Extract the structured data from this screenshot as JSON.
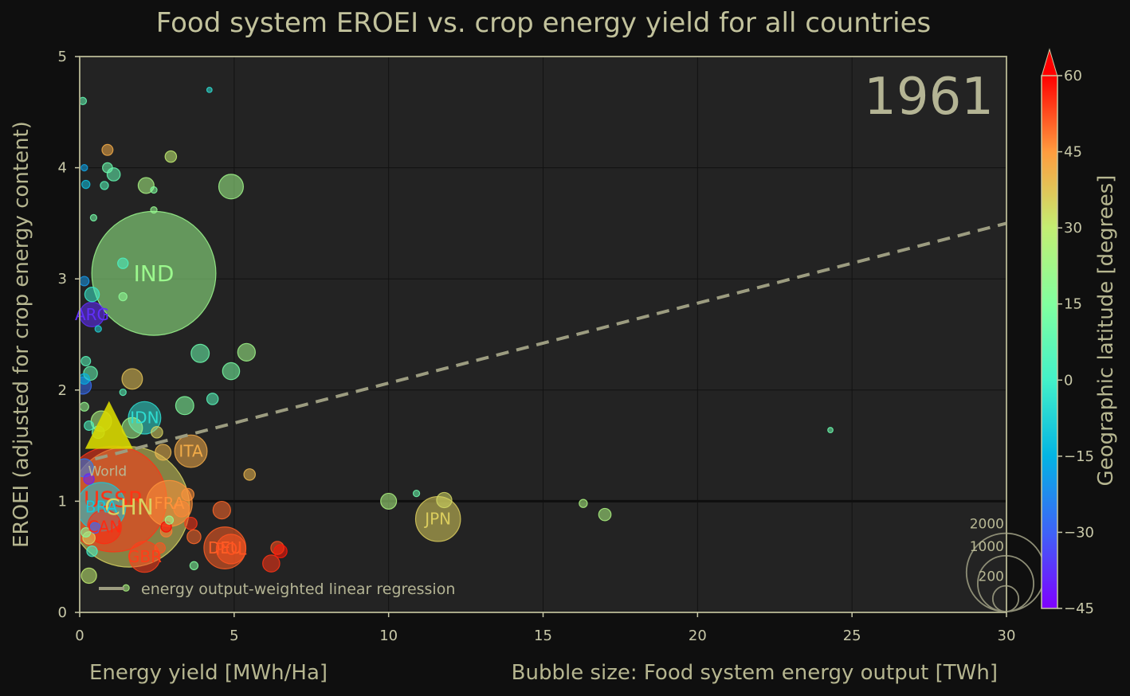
{
  "chart_data": {
    "type": "scatter",
    "title": "Food system EROEI vs. crop energy yield for all countries",
    "xlabel": "Energy yield [MWh/Ha]",
    "ylabel": "EROEI (adjusted for crop energy content)",
    "size_label": "Bubble size: Food system energy output [TWh]",
    "year": "1961",
    "xlim": [
      0,
      30
    ],
    "ylim": [
      0,
      5
    ],
    "xticks": [
      "0",
      "5",
      "10",
      "15",
      "20",
      "25",
      "30"
    ],
    "yticks": [
      "0",
      "1",
      "2",
      "3",
      "4",
      "5"
    ],
    "grid": true,
    "reference_line_y": 1,
    "regression": {
      "label": "energy output-weighted linear regression",
      "x": [
        0.5,
        30
      ],
      "y": [
        1.38,
        3.5
      ],
      "color": "#9c9c80"
    },
    "world_marker": {
      "label": "World",
      "x": 0.95,
      "y": 1.6,
      "color": "#d8d800"
    },
    "colorbar": {
      "label": "Geographic latitude [degrees]",
      "min": -45,
      "max": 60,
      "ticks": [
        "60",
        "45",
        "30",
        "15",
        "0",
        "−15",
        "−30",
        "−45"
      ],
      "tick_values": [
        60,
        45,
        30,
        15,
        0,
        -15,
        -30,
        -45
      ]
    },
    "size_legend": {
      "values": [
        2000,
        1000,
        200
      ],
      "labels": [
        "2000",
        "1000",
        "200"
      ]
    },
    "labeled_points": [
      {
        "label": "IND",
        "x": 2.4,
        "y": 3.05,
        "lat": 21,
        "size": 1800
      },
      {
        "label": "ARG",
        "x": 0.4,
        "y": 2.68,
        "lat": -38,
        "size": 60
      },
      {
        "label": "IDN",
        "x": 2.1,
        "y": 1.75,
        "lat": -5,
        "size": 110
      },
      {
        "label": "ITA",
        "x": 3.6,
        "y": 1.45,
        "lat": 42,
        "size": 110
      },
      {
        "label": "USSR",
        "x": 1.1,
        "y": 1.02,
        "lat": 55,
        "size": 1300
      },
      {
        "label": "CHN",
        "x": 1.6,
        "y": 0.95,
        "lat": 35,
        "size": 1700
      },
      {
        "label": "BRA",
        "x": 0.7,
        "y": 0.95,
        "lat": -10,
        "size": 260
      },
      {
        "label": "FRA",
        "x": 2.9,
        "y": 0.98,
        "lat": 46,
        "size": 230
      },
      {
        "label": "CAN",
        "x": 0.8,
        "y": 0.77,
        "lat": 56,
        "size": 120
      },
      {
        "label": "GBR",
        "x": 2.1,
        "y": 0.5,
        "lat": 54,
        "size": 100
      },
      {
        "label": "DEU",
        "x": 4.7,
        "y": 0.58,
        "lat": 51,
        "size": 190
      },
      {
        "label": "POL",
        "x": 4.9,
        "y": 0.57,
        "lat": 52,
        "size": 90
      },
      {
        "label": "JPN",
        "x": 11.6,
        "y": 0.84,
        "lat": 36,
        "size": 220
      }
    ],
    "points": [
      {
        "x": 4.9,
        "y": 3.83,
        "lat": 22,
        "size": 60
      },
      {
        "x": 2.15,
        "y": 3.84,
        "lat": 24,
        "size": 22
      },
      {
        "x": 2.95,
        "y": 4.1,
        "lat": 30,
        "size": 10
      },
      {
        "x": 1.1,
        "y": 3.94,
        "lat": 8,
        "size": 14
      },
      {
        "x": 0.9,
        "y": 4.0,
        "lat": 10,
        "size": 7
      },
      {
        "x": 0.9,
        "y": 4.16,
        "lat": 42,
        "size": 9
      },
      {
        "x": 0.1,
        "y": 4.6,
        "lat": 8,
        "size": 3
      },
      {
        "x": 0.2,
        "y": 3.85,
        "lat": -12,
        "size": 4
      },
      {
        "x": 0.15,
        "y": 4.0,
        "lat": -18,
        "size": 2
      },
      {
        "x": 0.8,
        "y": 3.84,
        "lat": 5,
        "size": 4
      },
      {
        "x": 2.4,
        "y": 3.8,
        "lat": 15,
        "size": 2
      },
      {
        "x": 2.4,
        "y": 3.62,
        "lat": 20,
        "size": 2
      },
      {
        "x": 0.45,
        "y": 3.55,
        "lat": 12,
        "size": 2
      },
      {
        "x": 1.4,
        "y": 3.14,
        "lat": 2,
        "size": 8
      },
      {
        "x": 0.15,
        "y": 2.98,
        "lat": -20,
        "size": 6
      },
      {
        "x": 0.4,
        "y": 2.86,
        "lat": -2,
        "size": 18
      },
      {
        "x": 1.4,
        "y": 2.84,
        "lat": 18,
        "size": 4
      },
      {
        "x": 0.6,
        "y": 2.55,
        "lat": -8,
        "size": 2
      },
      {
        "x": 0.2,
        "y": 2.26,
        "lat": 5,
        "size": 6
      },
      {
        "x": 0.35,
        "y": 2.15,
        "lat": 8,
        "size": 16
      },
      {
        "x": 0.15,
        "y": 2.1,
        "lat": -15,
        "size": 8
      },
      {
        "x": 0.1,
        "y": 2.04,
        "lat": -28,
        "size": 26
      },
      {
        "x": 1.7,
        "y": 2.1,
        "lat": 38,
        "size": 40
      },
      {
        "x": 3.9,
        "y": 2.33,
        "lat": 10,
        "size": 30
      },
      {
        "x": 5.4,
        "y": 2.34,
        "lat": 22,
        "size": 28
      },
      {
        "x": 4.9,
        "y": 2.17,
        "lat": 13,
        "size": 26
      },
      {
        "x": 4.3,
        "y": 1.92,
        "lat": 5,
        "size": 10
      },
      {
        "x": 3.4,
        "y": 1.86,
        "lat": 15,
        "size": 30
      },
      {
        "x": 1.4,
        "y": 1.98,
        "lat": 5,
        "size": 2
      },
      {
        "x": 0.15,
        "y": 1.85,
        "lat": 20,
        "size": 5
      },
      {
        "x": 0.7,
        "y": 1.72,
        "lat": 25,
        "size": 40
      },
      {
        "x": 0.3,
        "y": 1.68,
        "lat": 3,
        "size": 6
      },
      {
        "x": 0.6,
        "y": 1.62,
        "lat": 12,
        "size": 12
      },
      {
        "x": 1.7,
        "y": 1.66,
        "lat": 22,
        "size": 40
      },
      {
        "x": 2.5,
        "y": 1.62,
        "lat": 35,
        "size": 10
      },
      {
        "x": 2.7,
        "y": 1.44,
        "lat": 40,
        "size": 22
      },
      {
        "x": 0.15,
        "y": 1.3,
        "lat": -25,
        "size": 30
      },
      {
        "x": 0.3,
        "y": 1.2,
        "lat": -40,
        "size": 8
      },
      {
        "x": 5.5,
        "y": 1.24,
        "lat": 40,
        "size": 10
      },
      {
        "x": 10.0,
        "y": 1.0,
        "lat": 25,
        "size": 22
      },
      {
        "x": 11.8,
        "y": 1.01,
        "lat": 34,
        "size": 20
      },
      {
        "x": 10.9,
        "y": 1.07,
        "lat": 10,
        "size": 2
      },
      {
        "x": 16.3,
        "y": 0.98,
        "lat": 25,
        "size": 4
      },
      {
        "x": 17.0,
        "y": 0.88,
        "lat": 25,
        "size": 12
      },
      {
        "x": 24.3,
        "y": 1.64,
        "lat": 10,
        "size": 1
      },
      {
        "x": 4.2,
        "y": 4.7,
        "lat": -5,
        "size": 1
      },
      {
        "x": 3.5,
        "y": 1.06,
        "lat": 46,
        "size": 12
      },
      {
        "x": 3.3,
        "y": 0.93,
        "lat": 47,
        "size": 22
      },
      {
        "x": 4.6,
        "y": 0.92,
        "lat": 50,
        "size": 28
      },
      {
        "x": 3.6,
        "y": 0.8,
        "lat": 55,
        "size": 12
      },
      {
        "x": 3.7,
        "y": 0.68,
        "lat": 50,
        "size": 16
      },
      {
        "x": 2.8,
        "y": 0.73,
        "lat": 48,
        "size": 10
      },
      {
        "x": 2.8,
        "y": 0.77,
        "lat": 60,
        "size": 8
      },
      {
        "x": 2.6,
        "y": 0.58,
        "lat": 52,
        "size": 8
      },
      {
        "x": 6.4,
        "y": 0.58,
        "lat": 52,
        "size": 14
      },
      {
        "x": 6.5,
        "y": 0.55,
        "lat": 58,
        "size": 14
      },
      {
        "x": 6.2,
        "y": 0.44,
        "lat": 55,
        "size": 26
      },
      {
        "x": 0.3,
        "y": 0.33,
        "lat": 30,
        "size": 20
      },
      {
        "x": 0.4,
        "y": 0.55,
        "lat": 0,
        "size": 8
      },
      {
        "x": 0.2,
        "y": 0.72,
        "lat": 15,
        "size": 6
      },
      {
        "x": 0.3,
        "y": 0.67,
        "lat": 35,
        "size": 12
      },
      {
        "x": 0.5,
        "y": 0.76,
        "lat": -30,
        "size": 8
      },
      {
        "x": 2.9,
        "y": 0.83,
        "lat": 20,
        "size": 4
      },
      {
        "x": 3.7,
        "y": 0.42,
        "lat": 15,
        "size": 4
      },
      {
        "x": 1.5,
        "y": 0.22,
        "lat": 25,
        "size": 2
      }
    ]
  }
}
